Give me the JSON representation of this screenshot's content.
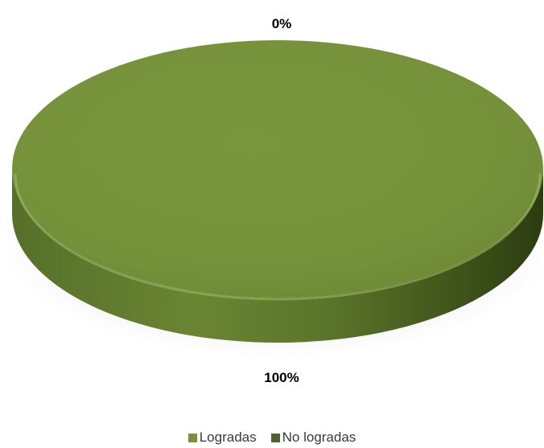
{
  "chart_data": {
    "type": "pie",
    "style": "3d",
    "labels": [
      "Logradas",
      "No logradas"
    ],
    "values": [
      100,
      0
    ],
    "data_labels": [
      "100%",
      "0%"
    ],
    "colors": [
      "#76923c",
      "#4f6228"
    ],
    "legend_position": "bottom",
    "title": ""
  }
}
